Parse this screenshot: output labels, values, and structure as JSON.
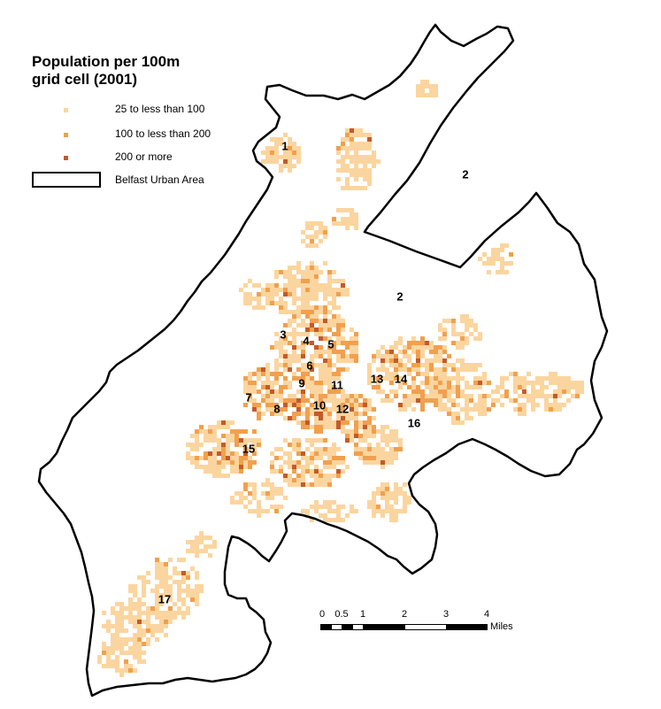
{
  "legend": {
    "title": "Population per 100m\ngrid cell (2001)",
    "items": [
      {
        "label": "25 to less than 100",
        "color": "#fbd59f"
      },
      {
        "label": "100 to less than 200",
        "color": "#f1a04e"
      },
      {
        "label": "200 or more",
        "color": "#c45a2a"
      }
    ],
    "boundary_label": "Belfast Urban Area"
  },
  "regions": [
    "1",
    "2",
    "2",
    "3",
    "4",
    "5",
    "6",
    "7",
    "8",
    "9",
    "10",
    "11",
    "12",
    "13",
    "14",
    "15",
    "16",
    "17"
  ],
  "scale_bar": {
    "ticks": [
      "0",
      "0.5",
      "1",
      "2",
      "3",
      "4"
    ],
    "unit": "Miles"
  },
  "colors": {
    "boundary": "#000000",
    "low": "#fbd59f",
    "medium": "#f1a04e",
    "high": "#c45a2a"
  }
}
